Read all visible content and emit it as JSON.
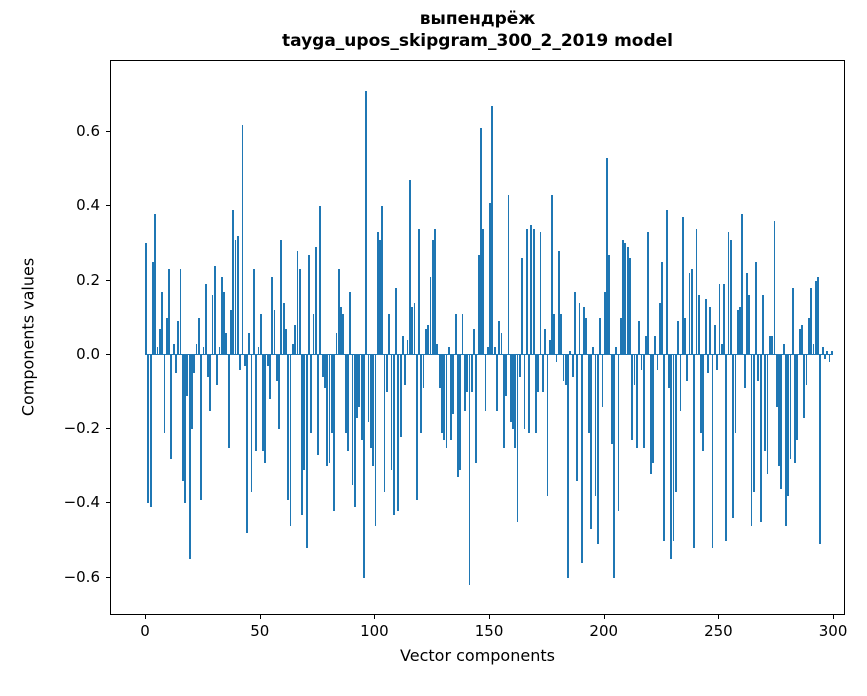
{
  "figure": {
    "title_line1": "выпендрёж",
    "title_line2": "tayga_upos_skipgram_300_2_2019 model"
  },
  "chart_data": {
    "type": "bar",
    "title": "выпендрёж",
    "subtitle": "tayga_upos_skipgram_300_2_2019 model",
    "xlabel": "Vector components",
    "ylabel": "Components values",
    "bar_color": "#1f77b4",
    "n_components": 300,
    "x_ticks": [
      0,
      50,
      100,
      150,
      200,
      250,
      300
    ],
    "y_ticks": [
      -0.6,
      -0.4,
      -0.2,
      0.0,
      0.2,
      0.4,
      0.6
    ],
    "xlim": [
      -15.3,
      305.2
    ],
    "ylim": [
      -0.703,
      0.791
    ],
    "grid": false,
    "legend": "none",
    "values": [
      0.3,
      -0.4,
      -0.41,
      0.25,
      0.38,
      0.02,
      0.07,
      0.17,
      -0.21,
      0.1,
      0.23,
      -0.28,
      0.03,
      -0.05,
      0.09,
      0.23,
      -0.34,
      -0.4,
      -0.11,
      -0.55,
      -0.2,
      -0.05,
      0.03,
      0.1,
      -0.39,
      0.02,
      0.19,
      -0.06,
      -0.15,
      0.16,
      0.24,
      -0.08,
      0.02,
      0.21,
      0.17,
      0.06,
      -0.25,
      0.12,
      0.39,
      0.31,
      0.32,
      -0.04,
      0.62,
      -0.03,
      -0.48,
      0.06,
      -0.37,
      0.23,
      -0.26,
      0.02,
      0.11,
      -0.26,
      -0.29,
      -0.03,
      -0.12,
      0.21,
      0.12,
      -0.07,
      -0.2,
      0.31,
      0.14,
      0.07,
      -0.39,
      -0.46,
      0.03,
      0.08,
      0.28,
      0.23,
      -0.43,
      -0.31,
      -0.52,
      0.27,
      -0.21,
      0.11,
      0.29,
      -0.27,
      0.4,
      -0.06,
      -0.09,
      -0.3,
      -0.29,
      -0.21,
      -0.42,
      0.06,
      0.23,
      0.13,
      0.11,
      -0.21,
      -0.26,
      0.17,
      -0.35,
      -0.41,
      -0.17,
      -0.14,
      -0.23,
      -0.6,
      0.71,
      -0.18,
      -0.25,
      -0.3,
      -0.46,
      0.33,
      0.31,
      0.4,
      -0.37,
      -0.1,
      0.11,
      -0.31,
      -0.43,
      0.18,
      -0.42,
      -0.22,
      0.05,
      -0.08,
      0.04,
      0.47,
      0.13,
      0.14,
      -0.39,
      0.34,
      -0.21,
      -0.09,
      0.07,
      0.08,
      0.21,
      0.31,
      0.34,
      0.03,
      -0.09,
      -0.21,
      -0.23,
      -0.25,
      0.02,
      -0.23,
      -0.16,
      0.11,
      -0.33,
      -0.31,
      0.11,
      -0.15,
      -0.1,
      -0.62,
      -0.1,
      0.07,
      -0.29,
      0.27,
      0.61,
      0.34,
      -0.15,
      0.02,
      0.41,
      0.67,
      0.02,
      -0.15,
      0.09,
      0.06,
      -0.25,
      -0.11,
      0.43,
      -0.18,
      -0.2,
      -0.25,
      -0.45,
      -0.06,
      0.26,
      -0.2,
      0.34,
      -0.21,
      0.35,
      0.34,
      -0.21,
      -0.1,
      0.33,
      -0.1,
      0.07,
      -0.38,
      0.04,
      0.43,
      0.11,
      -0.02,
      0.28,
      0.11,
      -0.07,
      -0.08,
      -0.6,
      0.01,
      -0.06,
      0.17,
      -0.34,
      0.14,
      -0.56,
      0.13,
      0.1,
      -0.21,
      -0.47,
      0.02,
      -0.38,
      -0.51,
      0.1,
      -0.14,
      0.17,
      0.53,
      0.27,
      -0.24,
      -0.6,
      0.02,
      -0.42,
      0.1,
      0.31,
      0.3,
      0.29,
      0.26,
      -0.23,
      -0.08,
      -0.25,
      0.09,
      -0.04,
      -0.25,
      0.05,
      0.33,
      -0.32,
      -0.29,
      0.05,
      -0.04,
      0.14,
      0.25,
      -0.5,
      0.39,
      -0.09,
      -0.55,
      -0.5,
      -0.37,
      0.09,
      -0.15,
      0.37,
      0.1,
      -0.07,
      0.22,
      0.23,
      -0.52,
      0.34,
      0.16,
      -0.21,
      -0.26,
      0.15,
      -0.05,
      0.13,
      -0.52,
      0.08,
      -0.04,
      0.19,
      0.03,
      0.19,
      -0.5,
      0.33,
      0.31,
      -0.44,
      -0.21,
      0.12,
      0.13,
      0.38,
      -0.09,
      0.22,
      0.16,
      -0.46,
      -0.37,
      0.25,
      -0.07,
      -0.45,
      0.16,
      -0.26,
      -0.32,
      0.05,
      0.05,
      0.36,
      -0.14,
      -0.3,
      -0.36,
      0.03,
      -0.46,
      -0.38,
      -0.28,
      0.18,
      -0.29,
      -0.23,
      0.07,
      0.08,
      -0.17,
      -0.08,
      0.1,
      0.18,
      0.03,
      0.2,
      0.21,
      -0.51,
      0.02,
      -0.01,
      0.01,
      -0.02,
      0.01
    ]
  }
}
